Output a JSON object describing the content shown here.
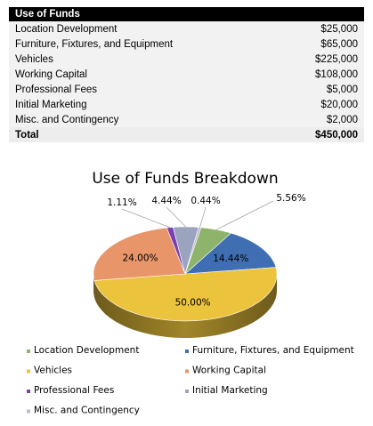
{
  "table": {
    "title": "Use of Funds",
    "rows": [
      {
        "label": "Location Development",
        "amount": "$25,000"
      },
      {
        "label": "Furniture, Fixtures, and Equipment",
        "amount": "$65,000"
      },
      {
        "label": "Vehicles",
        "amount": "$225,000"
      },
      {
        "label": "Working Capital",
        "amount": "$108,000"
      },
      {
        "label": "Professional Fees",
        "amount": "$5,000"
      },
      {
        "label": "Initial Marketing",
        "amount": "$20,000"
      },
      {
        "label": "Misc. and Contingency",
        "amount": "$2,000"
      }
    ],
    "total_label": "Total",
    "total_amount": "$450,000"
  },
  "chart_data": {
    "type": "pie",
    "title": "Use of Funds Breakdown",
    "categories": [
      "Location Development",
      "Furniture, Fixtures, and Equipment",
      "Vehicles",
      "Working Capital",
      "Professional Fees",
      "Initial Marketing",
      "Misc. and Contingency"
    ],
    "values": [
      25000,
      65000,
      225000,
      108000,
      5000,
      20000,
      2000
    ],
    "percent_labels": [
      "5.56%",
      "14.44%",
      "50.00%",
      "24.00%",
      "1.11%",
      "4.44%",
      "0.44%"
    ],
    "colors": [
      "#8db46a",
      "#3f6fb2",
      "#ebc33c",
      "#e8956a",
      "#7b3fb0",
      "#9aa4be",
      "#c3b4d6"
    ],
    "legend_position": "bottom"
  }
}
